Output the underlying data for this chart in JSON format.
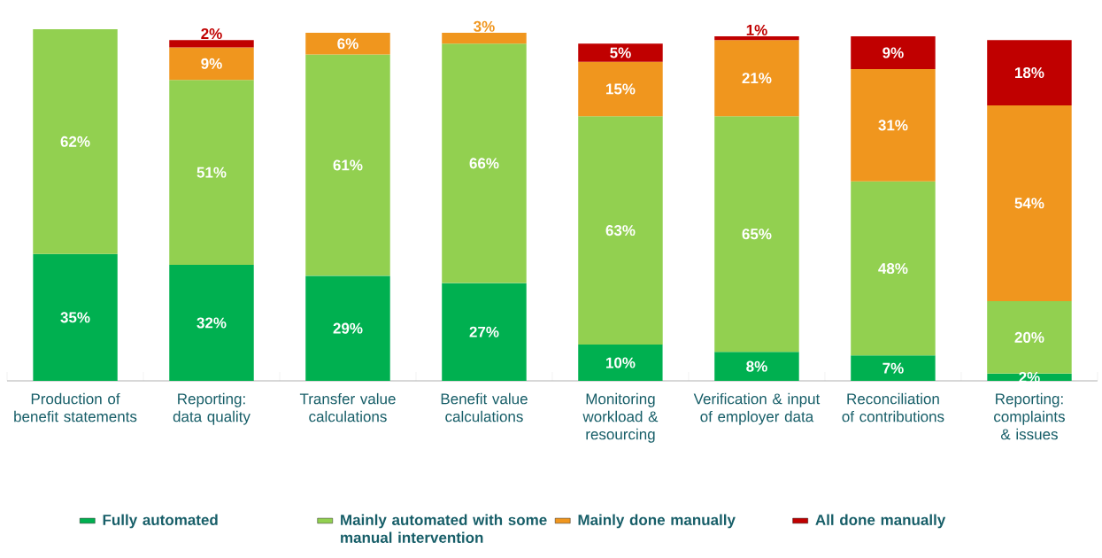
{
  "chart_data": {
    "type": "bar",
    "stacked": true,
    "data_labels": true,
    "legend": "bottom",
    "categories": [
      "Production of benefit statements",
      "Reporting: data quality",
      "Transfer value calculations",
      "Benefit value calculations",
      "Monitoring workload & resourcing",
      "Verification & input of employer data",
      "Reconciliation of contributions",
      "Reporting: complaints & issues"
    ],
    "series": [
      {
        "name": "Fully automated",
        "color": "#00b050",
        "values": [
          35,
          32,
          29,
          27,
          10,
          8,
          7,
          2
        ],
        "value_labels": [
          "35%",
          "32%",
          "29%",
          "27%",
          "10%",
          "8%",
          "7%",
          "2%"
        ]
      },
      {
        "name": "Mainly automated with some manual intervention",
        "color": "#92d050",
        "values": [
          62,
          51,
          61,
          66,
          63,
          65,
          48,
          20
        ],
        "value_labels": [
          "62%",
          "51%",
          "61%",
          "66%",
          "63%",
          "65%",
          "48%",
          "20%"
        ]
      },
      {
        "name": "Mainly done manually",
        "color": "#f0961e",
        "values": [
          null,
          9,
          6,
          3,
          15,
          21,
          31,
          54
        ],
        "value_labels": [
          null,
          "9%",
          "6%",
          "3%",
          "15%",
          "21%",
          "31%",
          "54%"
        ]
      },
      {
        "name": "All done manually",
        "color": "#c00000",
        "values": [
          null,
          2,
          null,
          null,
          5,
          1,
          9,
          18
        ],
        "value_labels": [
          null,
          "2%",
          null,
          null,
          "5%",
          "1%",
          "9%",
          "18%"
        ]
      }
    ]
  }
}
